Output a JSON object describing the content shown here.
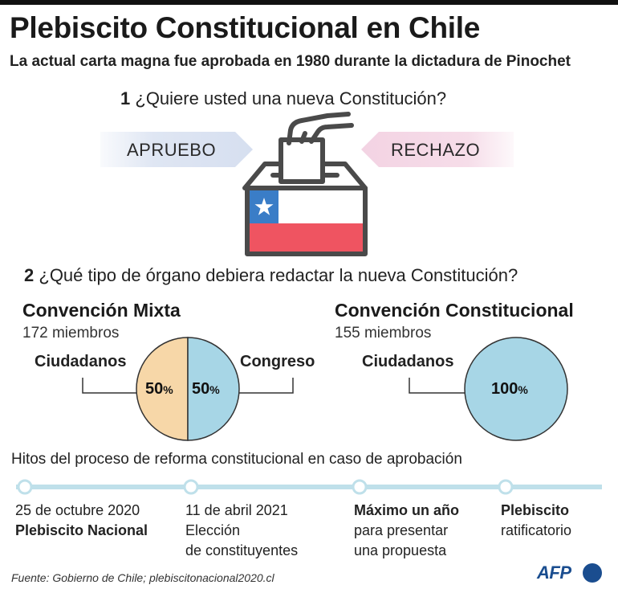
{
  "title": "Plebiscito Constitucional en Chile",
  "subtitle": "La actual carta magna fue aprobada en 1980 durante la dictadura de Pinochet",
  "question1": {
    "number": "1",
    "text": "¿Quiere usted una nueva Constitución?"
  },
  "options": {
    "approve": "APRUEBO",
    "reject": "RECHAZO"
  },
  "question2": {
    "number": "2",
    "text": "¿Qué tipo de órgano debiera redactar la nueva Constitución?"
  },
  "mixta": {
    "title": "Convención Mixta",
    "members": "172 miembros",
    "left_label": "Ciudadanos",
    "right_label": "Congreso",
    "left_value": "50",
    "right_value": "50",
    "unit": "%"
  },
  "constitucional": {
    "title": "Convención Constitucional",
    "members": "155 miembros",
    "label": "Ciudadanos",
    "value": "100",
    "unit": "%"
  },
  "timeline": {
    "title": "Hitos del proceso de reforma constitucional en caso de aprobación",
    "items": [
      {
        "line1": "25 de octubre 2020",
        "line2": "Plebiscito Nacional",
        "line3": ""
      },
      {
        "line1": "11 de abril 2021",
        "line2": "Elección",
        "line3": "de constituyentes"
      },
      {
        "line1": "Máximo un año",
        "line2": "para presentar",
        "line3": "una propuesta"
      },
      {
        "line1": "Plebiscito",
        "line2": "ratificatorio",
        "line3": ""
      }
    ]
  },
  "source": "Fuente: Gobierno de Chile; plebiscitonacional2020.cl",
  "brand": "AFP",
  "colors": {
    "approve": "#dfe6f3",
    "reject": "#f6dde9",
    "citizens": "#f7d7a8",
    "congress": "#a7d6e6",
    "flag_red": "#ef5461",
    "flag_blue": "#3a7dc7",
    "timeline": "#bfe0ea",
    "afp": "#1a4d8f"
  }
}
